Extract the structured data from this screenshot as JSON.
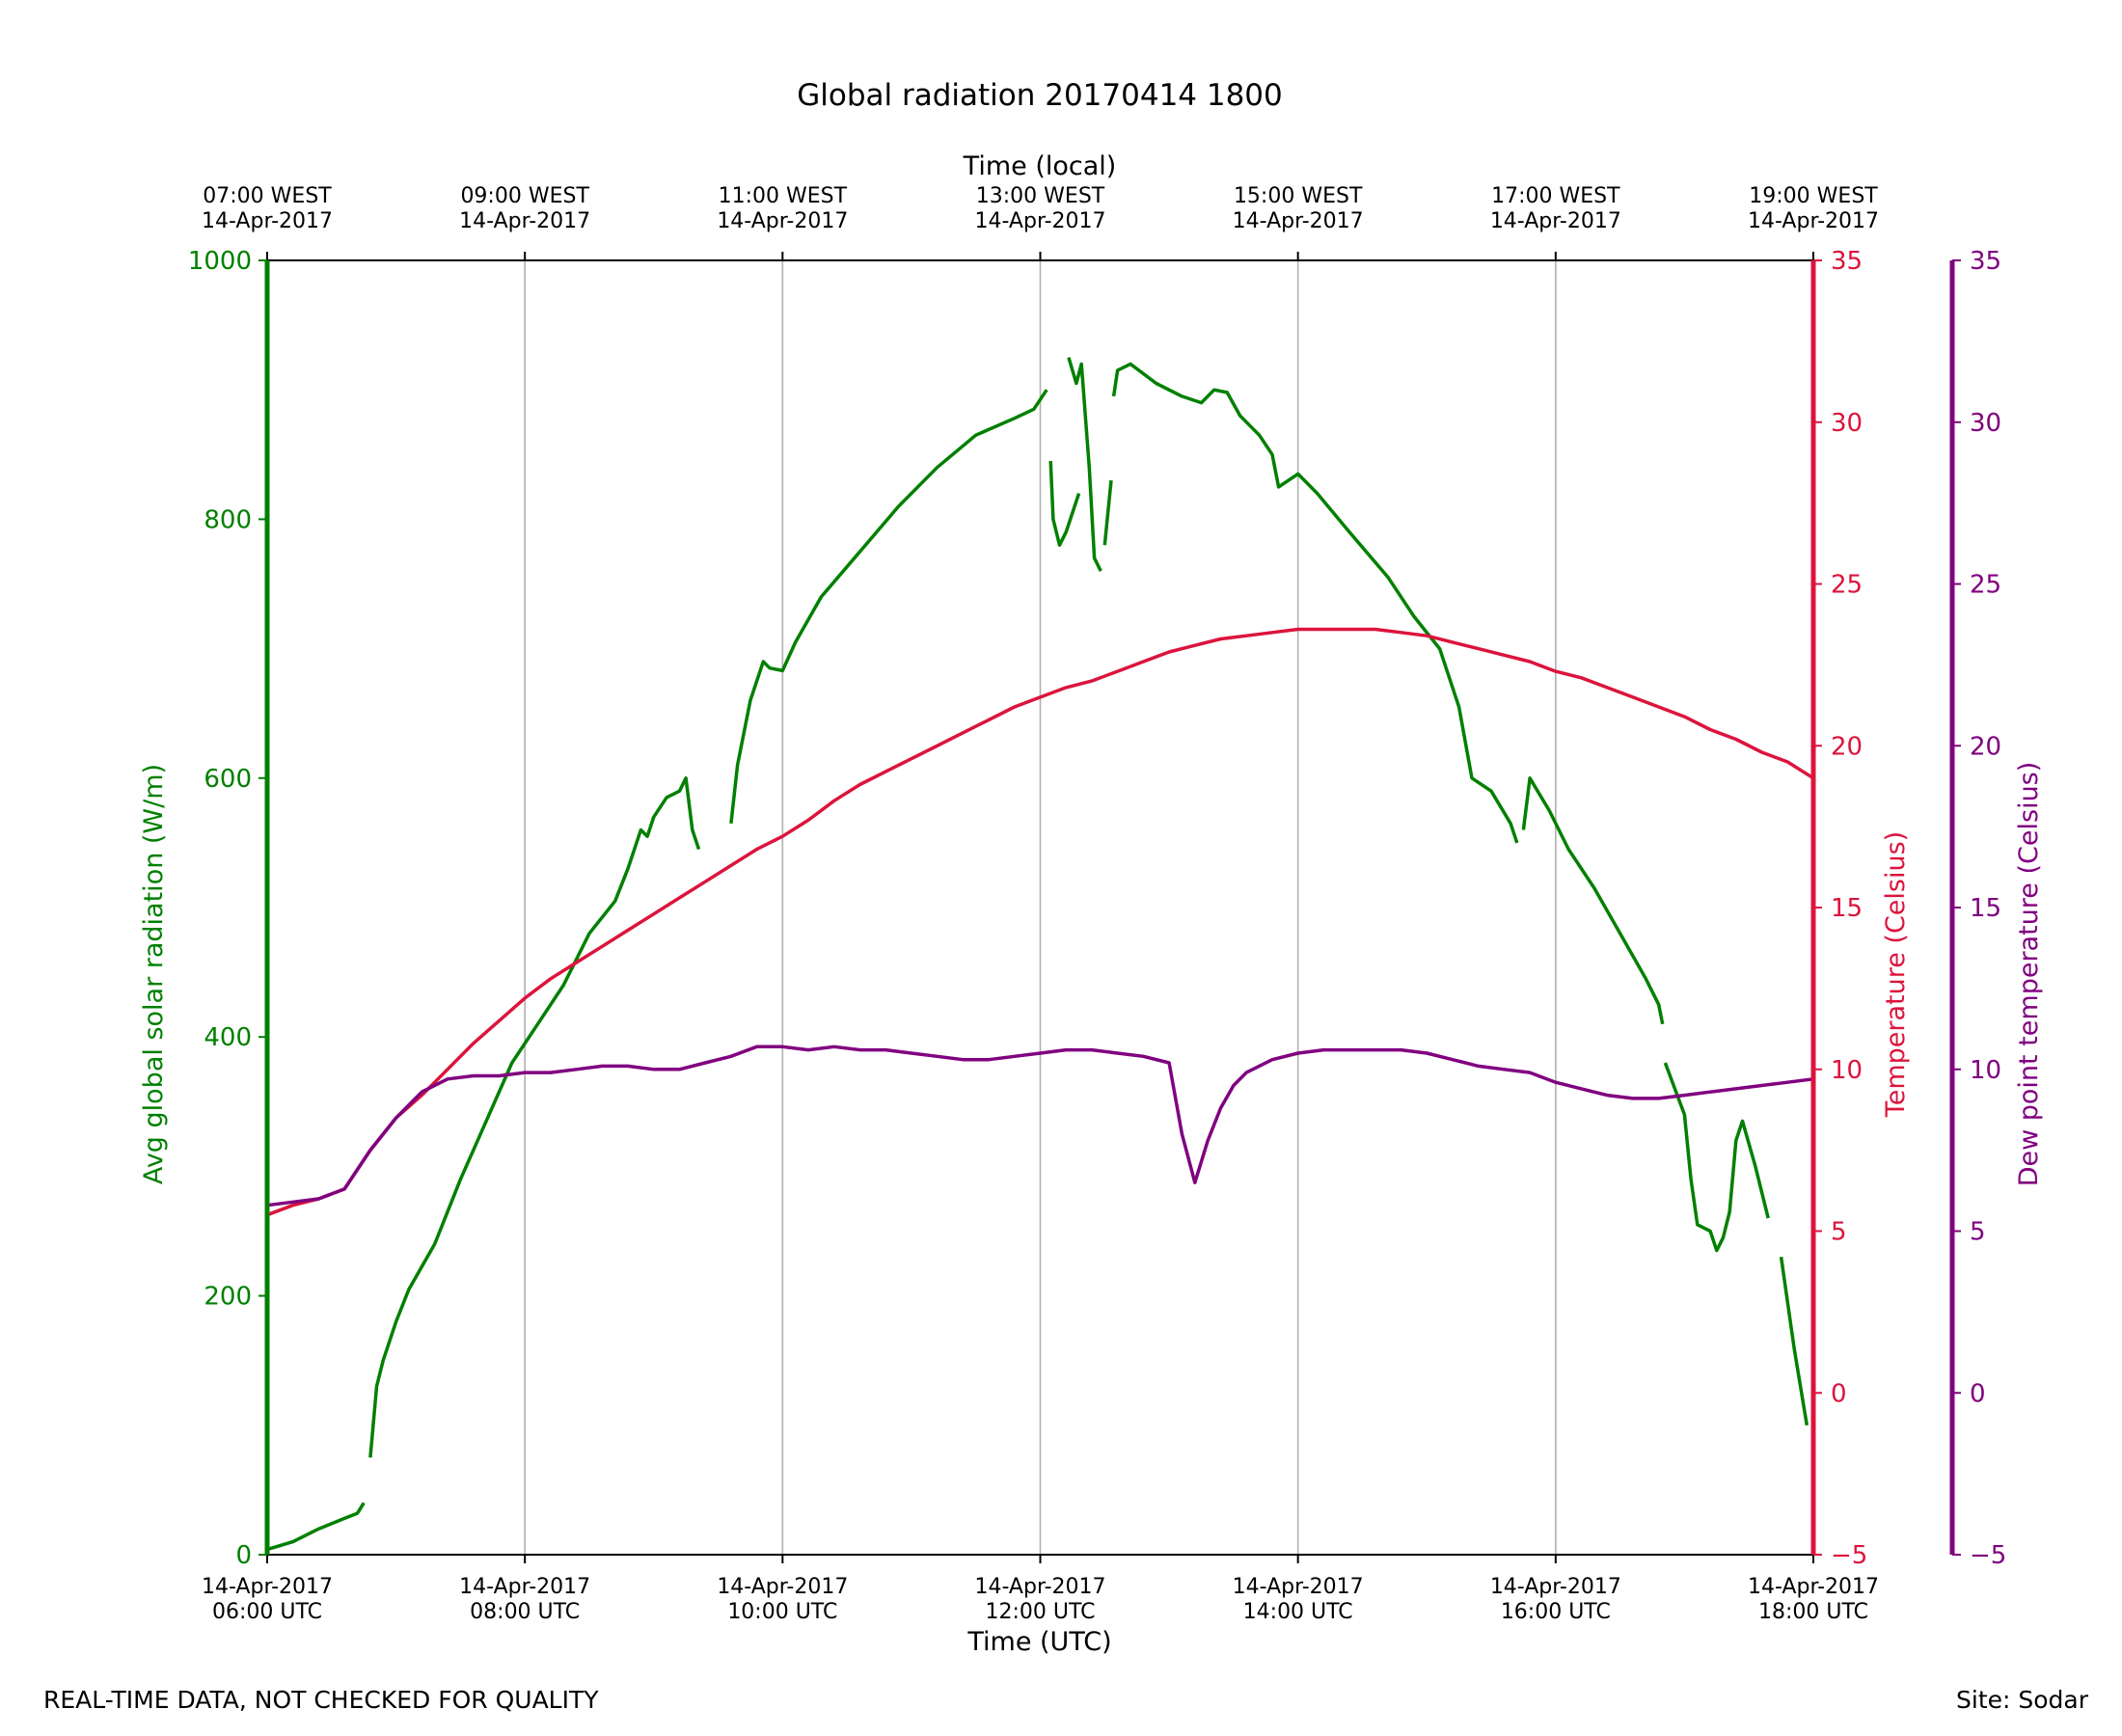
{
  "chart_data": {
    "type": "line",
    "title": "Global radiation 20170414 1800",
    "xlabel_bottom": "Time (UTC)",
    "xlabel_top": "Time (local)",
    "ylabel_left": "Avg global solar radiation (W/m)",
    "ylabel_right": "Temperature (Celsius)",
    "ylabel_right2": "Dew point temperature (Celsius)",
    "xlim_hours_utc": [
      6,
      18
    ],
    "ylim_left": [
      0,
      1000
    ],
    "ylim_right": [
      -5,
      35
    ],
    "ylim_right2": [
      -5,
      35
    ],
    "left_ticks": [
      0,
      200,
      400,
      600,
      800,
      1000
    ],
    "right_ticks": [
      -5,
      0,
      5,
      10,
      15,
      20,
      25,
      30,
      35
    ],
    "grid": "vertical",
    "x_ticks": [
      {
        "hour": 6,
        "bottom_date": "14-Apr-2017",
        "bottom_time": "06:00 UTC",
        "top_time": "07:00 WEST",
        "top_date": "14-Apr-2017"
      },
      {
        "hour": 8,
        "bottom_date": "14-Apr-2017",
        "bottom_time": "08:00 UTC",
        "top_time": "09:00 WEST",
        "top_date": "14-Apr-2017"
      },
      {
        "hour": 10,
        "bottom_date": "14-Apr-2017",
        "bottom_time": "10:00 UTC",
        "top_time": "11:00 WEST",
        "top_date": "14-Apr-2017"
      },
      {
        "hour": 12,
        "bottom_date": "14-Apr-2017",
        "bottom_time": "12:00 UTC",
        "top_time": "13:00 WEST",
        "top_date": "14-Apr-2017"
      },
      {
        "hour": 14,
        "bottom_date": "14-Apr-2017",
        "bottom_time": "14:00 UTC",
        "top_time": "15:00 WEST",
        "top_date": "14-Apr-2017"
      },
      {
        "hour": 16,
        "bottom_date": "14-Apr-2017",
        "bottom_time": "16:00 UTC",
        "top_time": "17:00 WEST",
        "top_date": "14-Apr-2017"
      },
      {
        "hour": 18,
        "bottom_date": "14-Apr-2017",
        "bottom_time": "18:00 UTC",
        "top_time": "19:00 WEST",
        "top_date": "14-Apr-2017"
      }
    ],
    "series": [
      {
        "name": "Avg global solar radiation",
        "axis": "left",
        "color": "#008000",
        "segments": [
          [
            [
              6.0,
              4
            ],
            [
              6.2,
              10
            ],
            [
              6.4,
              20
            ],
            [
              6.6,
              28
            ],
            [
              6.7,
              32
            ],
            [
              6.75,
              40
            ]
          ],
          [
            [
              6.8,
              75
            ],
            [
              6.85,
              130
            ],
            [
              6.9,
              150
            ],
            [
              7.0,
              180
            ],
            [
              7.1,
              205
            ],
            [
              7.3,
              240
            ],
            [
              7.5,
              290
            ],
            [
              7.7,
              335
            ],
            [
              7.9,
              380
            ],
            [
              8.1,
              410
            ],
            [
              8.3,
              440
            ],
            [
              8.5,
              480
            ],
            [
              8.7,
              505
            ],
            [
              8.8,
              530
            ],
            [
              8.9,
              560
            ],
            [
              8.95,
              555
            ],
            [
              9.0,
              570
            ],
            [
              9.1,
              585
            ],
            [
              9.2,
              590
            ],
            [
              9.25,
              600
            ],
            [
              9.3,
              560
            ],
            [
              9.35,
              545
            ]
          ],
          [
            [
              9.6,
              565
            ],
            [
              9.65,
              610
            ],
            [
              9.75,
              660
            ],
            [
              9.85,
              690
            ],
            [
              9.9,
              685
            ],
            [
              10.0,
              683
            ],
            [
              10.1,
              705
            ],
            [
              10.3,
              740
            ],
            [
              10.6,
              775
            ],
            [
              10.9,
              810
            ],
            [
              11.2,
              840
            ],
            [
              11.5,
              865
            ],
            [
              11.8,
              878
            ],
            [
              11.95,
              885
            ],
            [
              12.05,
              900
            ]
          ],
          [
            [
              12.08,
              845
            ],
            [
              12.1,
              800
            ],
            [
              12.15,
              780
            ],
            [
              12.2,
              790
            ],
            [
              12.3,
              820
            ]
          ],
          [
            [
              12.22,
              925
            ],
            [
              12.28,
              905
            ],
            [
              12.32,
              920
            ],
            [
              12.38,
              840
            ],
            [
              12.42,
              770
            ],
            [
              12.47,
              760
            ]
          ],
          [
            [
              12.5,
              780
            ],
            [
              12.55,
              830
            ]
          ],
          [
            [
              12.57,
              895
            ],
            [
              12.6,
              915
            ],
            [
              12.7,
              920
            ],
            [
              12.9,
              905
            ],
            [
              13.1,
              895
            ],
            [
              13.25,
              890
            ],
            [
              13.35,
              900
            ],
            [
              13.45,
              898
            ],
            [
              13.55,
              880
            ],
            [
              13.7,
              865
            ],
            [
              13.8,
              850
            ],
            [
              13.85,
              825
            ],
            [
              14.0,
              835
            ],
            [
              14.15,
              820
            ],
            [
              14.4,
              790
            ],
            [
              14.7,
              755
            ],
            [
              14.9,
              725
            ],
            [
              15.1,
              700
            ],
            [
              15.25,
              655
            ],
            [
              15.35,
              600
            ],
            [
              15.5,
              590
            ],
            [
              15.65,
              565
            ],
            [
              15.7,
              550
            ]
          ],
          [
            [
              15.75,
              560
            ],
            [
              15.8,
              600
            ],
            [
              15.95,
              575
            ],
            [
              16.1,
              545
            ],
            [
              16.3,
              515
            ],
            [
              16.5,
              480
            ],
            [
              16.7,
              445
            ],
            [
              16.8,
              425
            ],
            [
              16.83,
              410
            ]
          ],
          [
            [
              16.85,
              380
            ],
            [
              17.0,
              340
            ],
            [
              17.05,
              290
            ],
            [
              17.1,
              255
            ],
            [
              17.2,
              250
            ],
            [
              17.25,
              235
            ],
            [
              17.3,
              245
            ],
            [
              17.35,
              265
            ],
            [
              17.4,
              320
            ],
            [
              17.45,
              335
            ],
            [
              17.55,
              300
            ],
            [
              17.65,
              260
            ]
          ],
          [
            [
              17.75,
              230
            ],
            [
              17.85,
              160
            ],
            [
              17.95,
              100
            ]
          ]
        ]
      },
      {
        "name": "Temperature",
        "axis": "right",
        "color": "#dc143c",
        "segments": [
          [
            [
              6.0,
              5.5
            ],
            [
              6.2,
              5.8
            ],
            [
              6.4,
              6.0
            ],
            [
              6.6,
              6.3
            ],
            [
              6.8,
              7.5
            ],
            [
              7.0,
              8.5
            ],
            [
              7.2,
              9.2
            ],
            [
              7.4,
              10.0
            ],
            [
              7.6,
              10.8
            ],
            [
              7.8,
              11.5
            ],
            [
              8.0,
              12.2
            ],
            [
              8.2,
              12.8
            ],
            [
              8.4,
              13.3
            ],
            [
              8.6,
              13.8
            ],
            [
              8.8,
              14.3
            ],
            [
              9.0,
              14.8
            ],
            [
              9.2,
              15.3
            ],
            [
              9.4,
              15.8
            ],
            [
              9.6,
              16.3
            ],
            [
              9.8,
              16.8
            ],
            [
              10.0,
              17.2
            ],
            [
              10.2,
              17.7
            ],
            [
              10.4,
              18.3
            ],
            [
              10.6,
              18.8
            ],
            [
              10.8,
              19.2
            ],
            [
              11.0,
              19.6
            ],
            [
              11.2,
              20.0
            ],
            [
              11.4,
              20.4
            ],
            [
              11.6,
              20.8
            ],
            [
              11.8,
              21.2
            ],
            [
              12.0,
              21.5
            ],
            [
              12.2,
              21.8
            ],
            [
              12.4,
              22.0
            ],
            [
              12.6,
              22.3
            ],
            [
              12.8,
              22.6
            ],
            [
              13.0,
              22.9
            ],
            [
              13.2,
              23.1
            ],
            [
              13.4,
              23.3
            ],
            [
              13.6,
              23.4
            ],
            [
              13.8,
              23.5
            ],
            [
              14.0,
              23.6
            ],
            [
              14.2,
              23.6
            ],
            [
              14.4,
              23.6
            ],
            [
              14.6,
              23.6
            ],
            [
              14.8,
              23.5
            ],
            [
              15.0,
              23.4
            ],
            [
              15.2,
              23.2
            ],
            [
              15.4,
              23.0
            ],
            [
              15.6,
              22.8
            ],
            [
              15.8,
              22.6
            ],
            [
              16.0,
              22.3
            ],
            [
              16.2,
              22.1
            ],
            [
              16.4,
              21.8
            ],
            [
              16.6,
              21.5
            ],
            [
              16.8,
              21.2
            ],
            [
              17.0,
              20.9
            ],
            [
              17.2,
              20.5
            ],
            [
              17.4,
              20.2
            ],
            [
              17.6,
              19.8
            ],
            [
              17.8,
              19.5
            ],
            [
              18.0,
              19.0
            ]
          ]
        ]
      },
      {
        "name": "Dew point temperature",
        "axis": "right2",
        "color": "#800080",
        "segments": [
          [
            [
              6.0,
              5.8
            ],
            [
              6.2,
              5.9
            ],
            [
              6.4,
              6.0
            ],
            [
              6.6,
              6.3
            ],
            [
              6.8,
              7.5
            ],
            [
              7.0,
              8.5
            ],
            [
              7.2,
              9.3
            ],
            [
              7.4,
              9.7
            ],
            [
              7.6,
              9.8
            ],
            [
              7.8,
              9.8
            ],
            [
              8.0,
              9.9
            ],
            [
              8.2,
              9.9
            ],
            [
              8.4,
              10.0
            ],
            [
              8.6,
              10.1
            ],
            [
              8.8,
              10.1
            ],
            [
              9.0,
              10.0
            ],
            [
              9.2,
              10.0
            ],
            [
              9.4,
              10.2
            ],
            [
              9.6,
              10.4
            ],
            [
              9.8,
              10.7
            ],
            [
              10.0,
              10.7
            ],
            [
              10.2,
              10.6
            ],
            [
              10.4,
              10.7
            ],
            [
              10.6,
              10.6
            ],
            [
              10.8,
              10.6
            ],
            [
              11.0,
              10.5
            ],
            [
              11.2,
              10.4
            ],
            [
              11.4,
              10.3
            ],
            [
              11.6,
              10.3
            ],
            [
              11.8,
              10.4
            ],
            [
              12.0,
              10.5
            ],
            [
              12.2,
              10.6
            ],
            [
              12.4,
              10.6
            ],
            [
              12.6,
              10.5
            ],
            [
              12.8,
              10.4
            ],
            [
              13.0,
              10.2
            ],
            [
              13.1,
              8.0
            ],
            [
              13.2,
              6.5
            ],
            [
              13.3,
              7.8
            ],
            [
              13.4,
              8.8
            ],
            [
              13.5,
              9.5
            ],
            [
              13.6,
              9.9
            ],
            [
              13.8,
              10.3
            ],
            [
              14.0,
              10.5
            ],
            [
              14.2,
              10.6
            ],
            [
              14.4,
              10.6
            ],
            [
              14.6,
              10.6
            ],
            [
              14.8,
              10.6
            ],
            [
              15.0,
              10.5
            ],
            [
              15.2,
              10.3
            ],
            [
              15.4,
              10.1
            ],
            [
              15.6,
              10.0
            ],
            [
              15.8,
              9.9
            ],
            [
              16.0,
              9.6
            ],
            [
              16.2,
              9.4
            ],
            [
              16.4,
              9.2
            ],
            [
              16.6,
              9.1
            ],
            [
              16.8,
              9.1
            ],
            [
              17.0,
              9.2
            ],
            [
              17.2,
              9.3
            ],
            [
              17.4,
              9.4
            ],
            [
              17.6,
              9.5
            ],
            [
              17.8,
              9.6
            ],
            [
              18.0,
              9.7
            ]
          ]
        ]
      }
    ]
  },
  "footer": {
    "left": "REAL-TIME DATA, NOT CHECKED FOR QUALITY",
    "right": "Site: Sodar"
  }
}
